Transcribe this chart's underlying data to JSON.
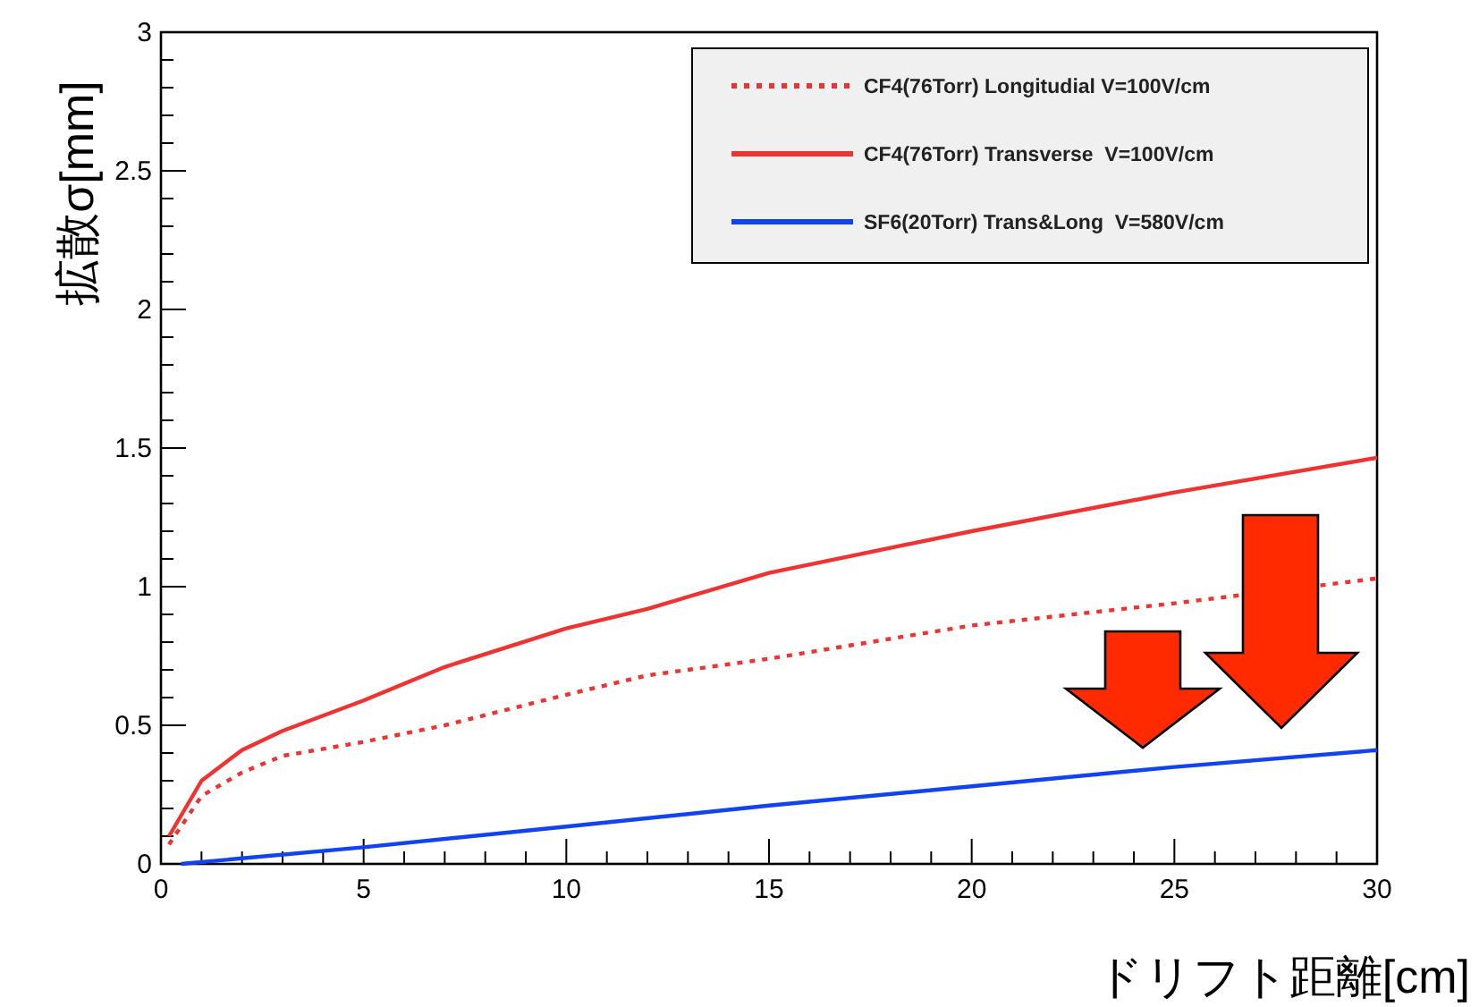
{
  "chart_data": {
    "type": "line",
    "xlabel": "ドリフト距離[cm]",
    "ylabel": "拡散σ[mm]",
    "xlim": [
      0,
      30
    ],
    "ylim": [
      0,
      3
    ],
    "xticks": [
      0,
      5,
      10,
      15,
      20,
      25,
      30
    ],
    "yticks": [
      0,
      0.5,
      1,
      1.5,
      2,
      2.5,
      3
    ],
    "grid": false,
    "legend": "top right",
    "marker": "none",
    "series": [
      {
        "name": "CF4(76Torr) Longitudial V=100V/cm",
        "color": "#ee3333",
        "line_style": "dotted",
        "x": [
          0.2,
          1,
          2,
          3,
          5,
          7,
          10,
          12,
          15,
          20,
          25,
          30
        ],
        "values": [
          0.07,
          0.245,
          0.33,
          0.39,
          0.44,
          0.5,
          0.61,
          0.68,
          0.74,
          0.86,
          0.94,
          1.03
        ]
      },
      {
        "name": "CF4(76Torr) Transverse  V=100V/cm",
        "color": "#ee3333",
        "line_style": "solid",
        "x": [
          0.2,
          1,
          2,
          3,
          5,
          7,
          10,
          12,
          15,
          20,
          25,
          30
        ],
        "values": [
          0.1,
          0.3,
          0.41,
          0.48,
          0.59,
          0.71,
          0.85,
          0.92,
          1.05,
          1.2,
          1.34,
          1.465
        ]
      },
      {
        "name": "SF6(20Torr) Trans&Long  V=580V/cm",
        "color": "#1144ee",
        "line_style": "solid",
        "x": [
          0.5,
          5,
          10,
          15,
          20,
          25,
          30
        ],
        "values": [
          0,
          0.06,
          0.135,
          0.21,
          0.28,
          0.35,
          0.41
        ]
      }
    ]
  }
}
